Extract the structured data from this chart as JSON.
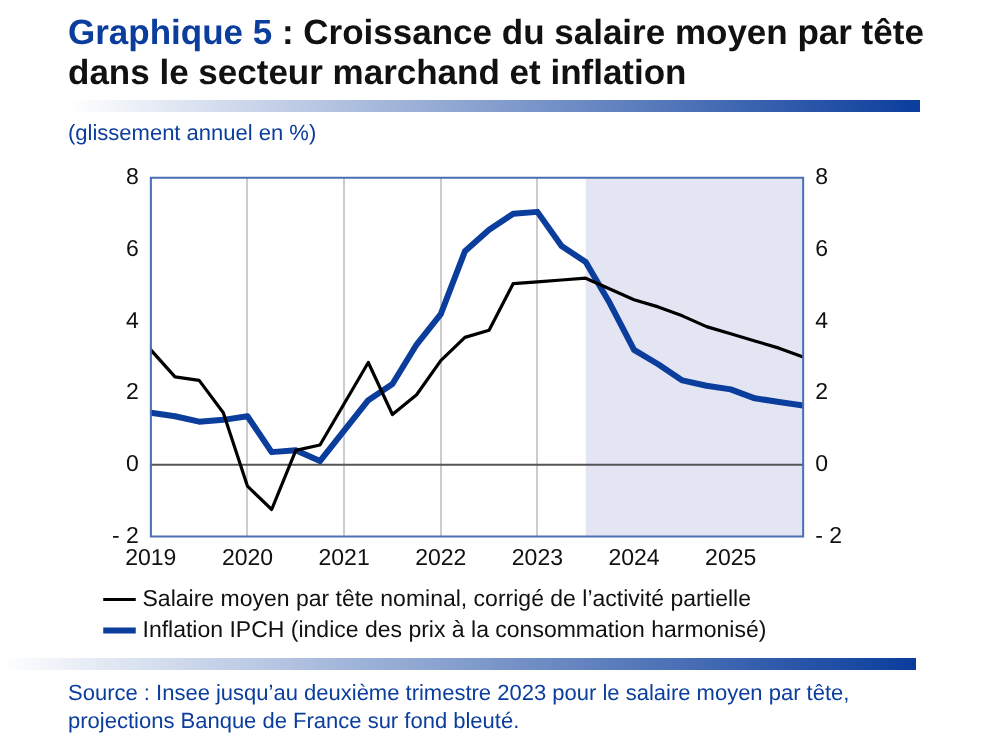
{
  "chart_data": {
    "type": "line",
    "title": "Graphique 5 : Croissance du salaire moyen par tête dans le secteur marchand et inflation",
    "ylabel": "(glissement annuel en %)",
    "x": [
      2019,
      2019.25,
      2019.5,
      2019.75,
      2020,
      2020.25,
      2020.5,
      2020.75,
      2021,
      2021.25,
      2021.5,
      2021.75,
      2022,
      2022.25,
      2022.5,
      2022.75,
      2023,
      2023.25,
      2023.5,
      2023.75,
      2024,
      2024.25,
      2024.5,
      2024.75,
      2025,
      2025.25,
      2025.5,
      2025.75
    ],
    "series": [
      {
        "name": "Salaire moyen par tête nominal, corrigé de l’activité partielle",
        "color": "#000000",
        "values": [
          3.2,
          2.45,
          2.35,
          1.45,
          -0.6,
          -1.25,
          0.4,
          0.55,
          1.7,
          2.85,
          1.4,
          1.95,
          2.9,
          3.55,
          3.75,
          5.05,
          5.1,
          5.15,
          5.2,
          4.9,
          4.6,
          4.4,
          4.15,
          3.85,
          3.65,
          3.45,
          3.25,
          3.0
        ]
      },
      {
        "name": "Inflation IPCH (indice des prix à la consommation harmonisé)",
        "color": "#0a3d9c",
        "values": [
          1.45,
          1.35,
          1.2,
          1.25,
          1.35,
          0.35,
          0.4,
          0.1,
          0.95,
          1.8,
          2.25,
          3.35,
          4.2,
          5.95,
          6.55,
          7.0,
          7.05,
          6.1,
          5.65,
          4.5,
          3.2,
          2.8,
          2.35,
          2.2,
          2.1,
          1.85,
          1.75,
          1.65
        ]
      }
    ],
    "xlim": [
      2019,
      2025.75
    ],
    "xticks": [
      2019,
      2020,
      2021,
      2022,
      2023,
      2024,
      2025
    ],
    "ylim": [
      -2,
      8
    ],
    "yticks": [
      {
        "value": -2,
        "label": "- 2"
      },
      0,
      2,
      4,
      6,
      8
    ],
    "y2lim": [
      -2,
      8
    ],
    "y2ticks": [
      {
        "value": -2,
        "label": "- 2"
      },
      0,
      2,
      4,
      6,
      8
    ],
    "grid": "x",
    "ref_lines": [
      {
        "axis": "y",
        "value": 0,
        "color": "#555555"
      }
    ],
    "bands": [
      {
        "axis": "x",
        "from": 2023.5,
        "to": 2025.75,
        "color": "#e4e5f2"
      }
    ],
    "legend": "bottom",
    "marker": "none",
    "line_style": "solid",
    "annotations": [
      "Source : Insee jusqu’au deuxième trimestre 2023 pour le salaire moyen par tête, projections Banque de France sur fond bleuté."
    ]
  }
}
